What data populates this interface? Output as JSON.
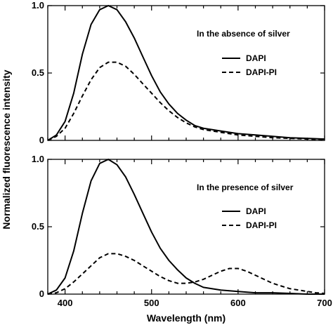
{
  "figure": {
    "ylabel": "Normalized fluorescence intensity",
    "xlabel": "Wavelength (nm)"
  },
  "chart_data": [
    {
      "type": "line",
      "annotation": "In the absence of silver",
      "xlim": [
        380,
        700
      ],
      "ylim": [
        0,
        1.0
      ],
      "y_ticks": [
        "0",
        "0.5",
        "1.0"
      ],
      "x_ticks": [],
      "legend_position": "right",
      "series": [
        {
          "name": "DAPI",
          "line_style": "solid",
          "x": [
            380,
            390,
            400,
            410,
            420,
            430,
            440,
            450,
            460,
            470,
            480,
            490,
            500,
            510,
            520,
            530,
            540,
            550,
            560,
            580,
            600,
            620,
            640,
            660,
            680,
            700
          ],
          "y": [
            0.0,
            0.04,
            0.14,
            0.35,
            0.64,
            0.86,
            0.97,
            1.0,
            0.97,
            0.88,
            0.76,
            0.62,
            0.48,
            0.36,
            0.27,
            0.2,
            0.15,
            0.11,
            0.09,
            0.07,
            0.05,
            0.04,
            0.03,
            0.02,
            0.015,
            0.01
          ]
        },
        {
          "name": "DAPI-PI",
          "line_style": "dashed",
          "x": [
            380,
            390,
            400,
            410,
            420,
            430,
            440,
            450,
            460,
            470,
            480,
            490,
            500,
            510,
            520,
            530,
            540,
            550,
            560,
            580,
            600,
            620,
            640,
            660,
            680,
            700
          ],
          "y": [
            0.0,
            0.03,
            0.09,
            0.2,
            0.33,
            0.45,
            0.54,
            0.58,
            0.58,
            0.55,
            0.49,
            0.42,
            0.35,
            0.28,
            0.22,
            0.17,
            0.13,
            0.1,
            0.08,
            0.06,
            0.04,
            0.03,
            0.02,
            0.015,
            0.01,
            0.005
          ]
        }
      ]
    },
    {
      "type": "line",
      "annotation": "In the presence of silver",
      "xlim": [
        380,
        700
      ],
      "ylim": [
        0,
        1.0
      ],
      "y_ticks": [
        "0",
        "0.5",
        "1.0"
      ],
      "x_ticks": [
        "400",
        "500",
        "600",
        "700"
      ],
      "legend_position": "right",
      "series": [
        {
          "name": "DAPI",
          "line_style": "solid",
          "x": [
            380,
            390,
            400,
            410,
            420,
            430,
            440,
            450,
            460,
            470,
            480,
            490,
            500,
            510,
            520,
            530,
            540,
            550,
            560,
            580,
            600,
            620,
            640,
            660,
            680,
            700
          ],
          "y": [
            0.0,
            0.03,
            0.12,
            0.32,
            0.6,
            0.84,
            0.97,
            1.0,
            0.96,
            0.87,
            0.74,
            0.6,
            0.46,
            0.34,
            0.25,
            0.18,
            0.12,
            0.08,
            0.05,
            0.03,
            0.02,
            0.01,
            0.01,
            0.005,
            0.0,
            0.0
          ]
        },
        {
          "name": "DAPI-PI",
          "line_style": "dashed",
          "x": [
            380,
            390,
            400,
            410,
            420,
            430,
            440,
            450,
            460,
            470,
            480,
            490,
            500,
            510,
            520,
            530,
            540,
            550,
            560,
            570,
            580,
            590,
            600,
            610,
            620,
            630,
            640,
            650,
            660,
            670,
            680,
            690,
            700
          ],
          "y": [
            0.0,
            0.01,
            0.04,
            0.09,
            0.15,
            0.21,
            0.27,
            0.3,
            0.3,
            0.28,
            0.25,
            0.21,
            0.17,
            0.13,
            0.1,
            0.08,
            0.08,
            0.09,
            0.11,
            0.14,
            0.17,
            0.19,
            0.19,
            0.17,
            0.14,
            0.11,
            0.08,
            0.06,
            0.04,
            0.03,
            0.02,
            0.01,
            0.005
          ]
        }
      ]
    }
  ]
}
